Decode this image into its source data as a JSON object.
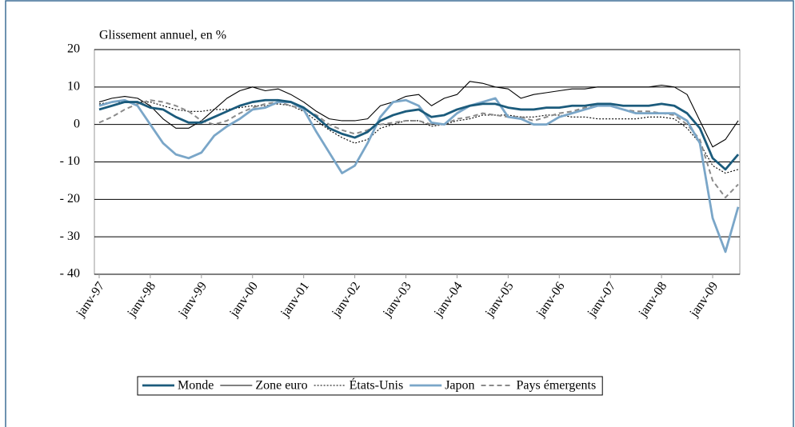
{
  "chart_data": {
    "type": "line",
    "title": "Glissement annuel, en %",
    "categories": [
      "janv-97",
      null,
      null,
      null,
      "janv-98",
      null,
      null,
      null,
      "janv-99",
      null,
      null,
      null,
      "janv-00",
      null,
      null,
      null,
      "janv-01",
      null,
      null,
      null,
      "janv-02",
      null,
      null,
      null,
      "janv-03",
      null,
      null,
      null,
      "janv-04",
      null,
      null,
      null,
      "janv-05",
      null,
      null,
      null,
      "janv-06",
      null,
      null,
      null,
      "janv-07",
      null,
      null,
      null,
      "janv-08",
      null,
      null,
      null,
      "janv-09",
      null,
      null
    ],
    "series": [
      {
        "name": "Monde",
        "color": "#1b5b7c",
        "line_style": "thick",
        "values": [
          4,
          5,
          6,
          6,
          4.5,
          4,
          2,
          0.5,
          0.5,
          2,
          3.5,
          5,
          6,
          6.5,
          6.5,
          6,
          4.5,
          2,
          -1,
          -2.5,
          -3.5,
          -2,
          1,
          2.5,
          3.5,
          4,
          2,
          2.5,
          4,
          5,
          5.5,
          5.5,
          4.5,
          4,
          4,
          4.5,
          4.5,
          5,
          5,
          5.5,
          5.5,
          5,
          5,
          5,
          5.5,
          5,
          3,
          -1,
          -9,
          -12,
          -8
        ]
      },
      {
        "name": "Zone euro",
        "color": "#000000",
        "line_style": "solid",
        "values": [
          6,
          7,
          7.5,
          7,
          5,
          1.5,
          -1,
          -1,
          1,
          4,
          7,
          9,
          10,
          9,
          9.5,
          8,
          6,
          3.5,
          1.5,
          1,
          1,
          1.5,
          5,
          6,
          7.5,
          8,
          5,
          7,
          8,
          11.5,
          11,
          10,
          9.5,
          7,
          8,
          8.5,
          9,
          9.5,
          9.5,
          10,
          10,
          10,
          10,
          10,
          10.5,
          10,
          8,
          1,
          -6,
          -4,
          1
        ]
      },
      {
        "name": "États-Unis",
        "color": "#000000",
        "line_style": "dotted",
        "values": [
          5.5,
          6,
          6,
          6,
          6,
          5,
          4,
          3.5,
          3.5,
          4,
          4,
          4.5,
          5,
          5,
          5.5,
          5,
          3.5,
          1,
          -1.5,
          -3.5,
          -5,
          -4,
          -1,
          0,
          1,
          1,
          -0.5,
          0,
          1,
          1.5,
          2.5,
          2.5,
          2.5,
          2,
          2,
          2.5,
          2.5,
          2,
          2,
          1.5,
          1.5,
          1.5,
          1.5,
          2,
          2,
          1.5,
          -1,
          -5,
          -11,
          -13,
          -12
        ]
      },
      {
        "name": "Japon",
        "color": "#7aa6c8",
        "line_style": "thick",
        "values": [
          5,
          6,
          6.5,
          5,
          0,
          -5,
          -8,
          -9,
          -7.5,
          -3,
          -0.5,
          1.5,
          4,
          4.5,
          6,
          6,
          4,
          -2,
          -7.5,
          -13,
          -11,
          -5,
          2,
          6,
          6.5,
          5,
          0.5,
          0,
          3,
          5,
          6,
          7,
          2,
          1.5,
          0,
          0,
          2,
          3,
          4,
          5,
          5,
          4,
          3,
          3,
          3,
          3,
          1,
          -5,
          -25,
          -34,
          -22
        ]
      },
      {
        "name": "Pays émergents",
        "color": "#8a8a8a",
        "line_style": "dashed",
        "values": [
          0.5,
          2,
          4,
          5.5,
          6.5,
          6,
          5,
          3.5,
          1,
          0,
          1,
          3,
          4.5,
          5.5,
          6,
          5,
          4,
          2.5,
          0,
          -1.5,
          -2.5,
          -1.5,
          0,
          0.5,
          1,
          1,
          0,
          0,
          1.5,
          2,
          3,
          2.5,
          2,
          2,
          1,
          2,
          3,
          3.5,
          4.5,
          5,
          5,
          4,
          3.5,
          3.5,
          3,
          2.5,
          0,
          -4,
          -15,
          -19.5,
          -16
        ]
      }
    ],
    "ylim": [
      -40,
      20
    ],
    "yticks": [
      {
        "value": -40,
        "label": "- 40"
      },
      {
        "value": -30,
        "label": "- 30"
      },
      {
        "value": -20,
        "label": "- 20"
      },
      {
        "value": -10,
        "label": "- 10"
      },
      0,
      10,
      20
    ],
    "grid": true,
    "legend": "bottom"
  }
}
